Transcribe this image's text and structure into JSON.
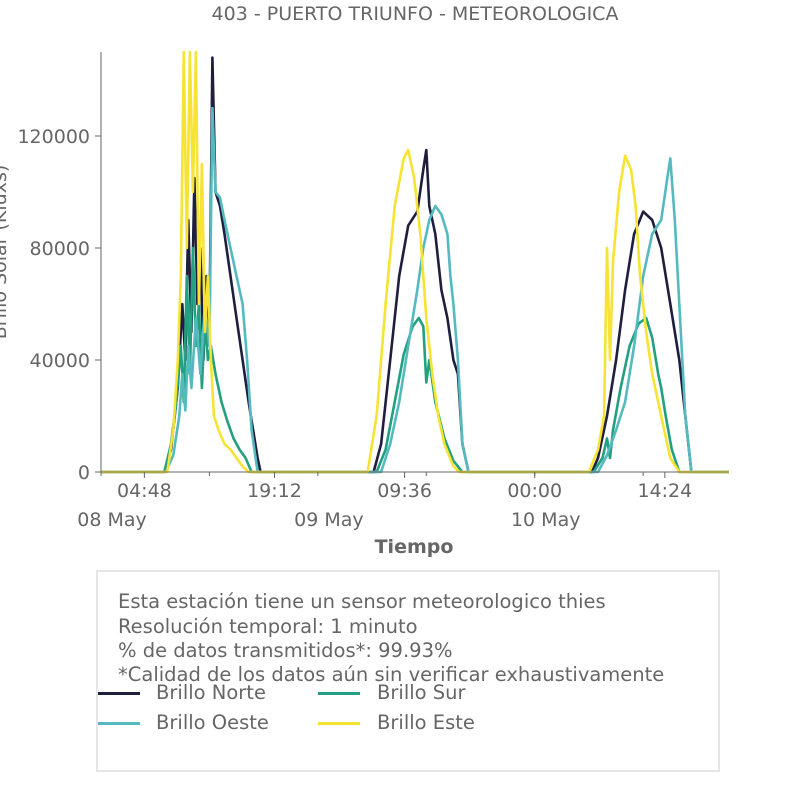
{
  "colors": {
    "norte": "#1f1e3f",
    "sur": "#22a07f",
    "oeste": "#55babf",
    "este": "#f6e333",
    "axis": "#666666",
    "border": "#e6e6e6"
  },
  "chart_data": {
    "type": "line",
    "title": "403 - PUERTO TRIUNFO - METEOROLOGICA",
    "xlabel": "Tiempo",
    "ylabel": "Brillo Solar (Kluxs)",
    "ylim": [
      0,
      150000
    ],
    "xlim": [
      "2024-05-08 00:00",
      "2024-05-10 21:30"
    ],
    "x_ticks": [
      {
        "t": "2024-05-08 04:48",
        "label": "04:48",
        "sub": "08 May"
      },
      {
        "t": "2024-05-08 19:12",
        "label": "19:12",
        "sub": ""
      },
      {
        "t": "2024-05-09 09:36",
        "label": "09:36",
        "sub": "09 May"
      },
      {
        "t": "2024-05-10 00:00",
        "label": "00:00",
        "sub": "10 May"
      },
      {
        "t": "2024-05-10 14:24",
        "label": "14:24",
        "sub": ""
      }
    ],
    "date_labels": [
      {
        "t": "2024-05-08 00:00",
        "label": "08 May"
      },
      {
        "t": "2024-05-09 00:00",
        "label": "09 May"
      },
      {
        "t": "2024-05-10 00:00",
        "label": "10 May"
      }
    ],
    "y_ticks": [
      0,
      40000,
      80000,
      120000
    ],
    "grid": false,
    "legend_position": "bottom",
    "series": [
      {
        "name": "Brillo Norte",
        "color_key": "norte",
        "points": [
          [
            "2024-05-08 00:00",
            0
          ],
          [
            "2024-05-08 07:00",
            0
          ],
          [
            "2024-05-08 07:45",
            8000
          ],
          [
            "2024-05-08 08:30",
            30000
          ],
          [
            "2024-05-08 09:00",
            60000
          ],
          [
            "2024-05-08 09:20",
            40000
          ],
          [
            "2024-05-08 09:40",
            90000
          ],
          [
            "2024-05-08 10:00",
            50000
          ],
          [
            "2024-05-08 10:20",
            105000
          ],
          [
            "2024-05-08 10:40",
            60000
          ],
          [
            "2024-05-08 11:00",
            80000
          ],
          [
            "2024-05-08 11:20",
            40000
          ],
          [
            "2024-05-08 11:40",
            70000
          ],
          [
            "2024-05-08 12:00",
            50000
          ],
          [
            "2024-05-08 12:20",
            148000
          ],
          [
            "2024-05-08 12:40",
            100000
          ],
          [
            "2024-05-08 13:10",
            95000
          ],
          [
            "2024-05-08 13:40",
            85000
          ],
          [
            "2024-05-08 14:20",
            70000
          ],
          [
            "2024-05-08 15:00",
            55000
          ],
          [
            "2024-05-08 15:40",
            40000
          ],
          [
            "2024-05-08 16:20",
            25000
          ],
          [
            "2024-05-08 16:50",
            15000
          ],
          [
            "2024-05-08 17:20",
            5000
          ],
          [
            "2024-05-08 17:40",
            0
          ],
          [
            "2024-05-09 06:10",
            0
          ],
          [
            "2024-05-09 07:00",
            10000
          ],
          [
            "2024-05-09 08:00",
            40000
          ],
          [
            "2024-05-09 09:00",
            70000
          ],
          [
            "2024-05-09 10:00",
            88000
          ],
          [
            "2024-05-09 11:00",
            93000
          ],
          [
            "2024-05-09 11:40",
            108000
          ],
          [
            "2024-05-09 12:00",
            115000
          ],
          [
            "2024-05-09 12:20",
            95000
          ],
          [
            "2024-05-09 13:00",
            85000
          ],
          [
            "2024-05-09 13:40",
            65000
          ],
          [
            "2024-05-09 14:20",
            55000
          ],
          [
            "2024-05-09 15:00",
            40000
          ],
          [
            "2024-05-09 15:30",
            35000
          ],
          [
            "2024-05-09 16:00",
            10000
          ],
          [
            "2024-05-09 16:40",
            0
          ],
          [
            "2024-05-10 06:20",
            0
          ],
          [
            "2024-05-10 07:00",
            5000
          ],
          [
            "2024-05-10 08:00",
            20000
          ],
          [
            "2024-05-10 09:00",
            40000
          ],
          [
            "2024-05-10 10:00",
            65000
          ],
          [
            "2024-05-10 11:00",
            85000
          ],
          [
            "2024-05-10 12:00",
            93000
          ],
          [
            "2024-05-10 13:00",
            90000
          ],
          [
            "2024-05-10 14:00",
            80000
          ],
          [
            "2024-05-10 15:00",
            60000
          ],
          [
            "2024-05-10 16:00",
            40000
          ],
          [
            "2024-05-10 16:40",
            20000
          ],
          [
            "2024-05-10 17:20",
            0
          ],
          [
            "2024-05-10 21:30",
            0
          ]
        ]
      },
      {
        "name": "Brillo Sur",
        "color_key": "sur",
        "points": [
          [
            "2024-05-08 00:00",
            0
          ],
          [
            "2024-05-08 07:00",
            0
          ],
          [
            "2024-05-08 07:45",
            10000
          ],
          [
            "2024-05-08 08:20",
            25000
          ],
          [
            "2024-05-08 08:50",
            45000
          ],
          [
            "2024-05-08 09:10",
            25000
          ],
          [
            "2024-05-08 09:30",
            70000
          ],
          [
            "2024-05-08 09:50",
            35000
          ],
          [
            "2024-05-08 10:10",
            80000
          ],
          [
            "2024-05-08 10:30",
            45000
          ],
          [
            "2024-05-08 10:50",
            60000
          ],
          [
            "2024-05-08 11:10",
            30000
          ],
          [
            "2024-05-08 11:30",
            55000
          ],
          [
            "2024-05-08 11:50",
            40000
          ],
          [
            "2024-05-08 12:10",
            45000
          ],
          [
            "2024-05-08 12:40",
            35000
          ],
          [
            "2024-05-08 13:20",
            25000
          ],
          [
            "2024-05-08 14:00",
            18000
          ],
          [
            "2024-05-08 14:40",
            12000
          ],
          [
            "2024-05-08 15:20",
            8000
          ],
          [
            "2024-05-08 16:00",
            5000
          ],
          [
            "2024-05-08 16:40",
            0
          ],
          [
            "2024-05-09 06:30",
            0
          ],
          [
            "2024-05-09 07:30",
            8000
          ],
          [
            "2024-05-09 08:30",
            25000
          ],
          [
            "2024-05-09 09:30",
            42000
          ],
          [
            "2024-05-09 10:30",
            52000
          ],
          [
            "2024-05-09 11:10",
            55000
          ],
          [
            "2024-05-09 11:40",
            52000
          ],
          [
            "2024-05-09 12:00",
            32000
          ],
          [
            "2024-05-09 12:20",
            40000
          ],
          [
            "2024-05-09 13:00",
            25000
          ],
          [
            "2024-05-09 14:00",
            12000
          ],
          [
            "2024-05-09 15:00",
            4000
          ],
          [
            "2024-05-09 16:00",
            0
          ],
          [
            "2024-05-10 06:30",
            0
          ],
          [
            "2024-05-10 07:30",
            5000
          ],
          [
            "2024-05-10 08:00",
            12000
          ],
          [
            "2024-05-10 08:20",
            5000
          ],
          [
            "2024-05-10 08:40",
            15000
          ],
          [
            "2024-05-10 09:30",
            30000
          ],
          [
            "2024-05-10 10:30",
            45000
          ],
          [
            "2024-05-10 11:30",
            53000
          ],
          [
            "2024-05-10 12:20",
            55000
          ],
          [
            "2024-05-10 13:00",
            48000
          ],
          [
            "2024-05-10 13:40",
            35000
          ],
          [
            "2024-05-10 14:00",
            30000
          ],
          [
            "2024-05-10 14:30",
            20000
          ],
          [
            "2024-05-10 15:10",
            8000
          ],
          [
            "2024-05-10 16:00",
            0
          ],
          [
            "2024-05-10 21:30",
            0
          ]
        ]
      },
      {
        "name": "Brillo Oeste",
        "color_key": "oeste",
        "points": [
          [
            "2024-05-08 00:00",
            0
          ],
          [
            "2024-05-08 07:10",
            0
          ],
          [
            "2024-05-08 08:00",
            6000
          ],
          [
            "2024-05-08 08:40",
            20000
          ],
          [
            "2024-05-08 09:00",
            35000
          ],
          [
            "2024-05-08 09:20",
            22000
          ],
          [
            "2024-05-08 09:40",
            45000
          ],
          [
            "2024-05-08 10:00",
            30000
          ],
          [
            "2024-05-08 10:30",
            55000
          ],
          [
            "2024-05-08 11:00",
            35000
          ],
          [
            "2024-05-08 11:30",
            60000
          ],
          [
            "2024-05-08 12:00",
            45000
          ],
          [
            "2024-05-08 12:20",
            130000
          ],
          [
            "2024-05-08 12:40",
            100000
          ],
          [
            "2024-05-08 13:10",
            98000
          ],
          [
            "2024-05-08 13:40",
            90000
          ],
          [
            "2024-05-08 14:20",
            80000
          ],
          [
            "2024-05-08 15:00",
            70000
          ],
          [
            "2024-05-08 15:40",
            60000
          ],
          [
            "2024-05-08 16:10",
            40000
          ],
          [
            "2024-05-08 16:40",
            15000
          ],
          [
            "2024-05-08 17:20",
            0
          ],
          [
            "2024-05-09 07:00",
            0
          ],
          [
            "2024-05-09 08:00",
            10000
          ],
          [
            "2024-05-09 09:00",
            25000
          ],
          [
            "2024-05-09 10:00",
            45000
          ],
          [
            "2024-05-09 11:00",
            65000
          ],
          [
            "2024-05-09 11:40",
            80000
          ],
          [
            "2024-05-09 12:20",
            90000
          ],
          [
            "2024-05-09 13:00",
            95000
          ],
          [
            "2024-05-09 13:40",
            92000
          ],
          [
            "2024-05-09 14:20",
            85000
          ],
          [
            "2024-05-09 14:40",
            70000
          ],
          [
            "2024-05-09 15:00",
            60000
          ],
          [
            "2024-05-09 15:30",
            40000
          ],
          [
            "2024-05-09 16:00",
            10000
          ],
          [
            "2024-05-09 16:40",
            0
          ],
          [
            "2024-05-10 07:00",
            0
          ],
          [
            "2024-05-10 08:00",
            6000
          ],
          [
            "2024-05-10 09:00",
            15000
          ],
          [
            "2024-05-10 10:00",
            25000
          ],
          [
            "2024-05-10 11:00",
            45000
          ],
          [
            "2024-05-10 12:00",
            70000
          ],
          [
            "2024-05-10 13:00",
            85000
          ],
          [
            "2024-05-10 14:00",
            90000
          ],
          [
            "2024-05-10 14:40",
            105000
          ],
          [
            "2024-05-10 15:00",
            112000
          ],
          [
            "2024-05-10 15:30",
            90000
          ],
          [
            "2024-05-10 16:00",
            60000
          ],
          [
            "2024-05-10 16:40",
            20000
          ],
          [
            "2024-05-10 17:20",
            0
          ],
          [
            "2024-05-10 21:30",
            0
          ]
        ]
      },
      {
        "name": "Brillo Este",
        "color_key": "este",
        "points": [
          [
            "2024-05-08 00:00",
            0
          ],
          [
            "2024-05-08 07:20",
            0
          ],
          [
            "2024-05-08 08:00",
            15000
          ],
          [
            "2024-05-08 08:30",
            40000
          ],
          [
            "2024-05-08 08:50",
            70000
          ],
          [
            "2024-05-08 09:10",
            150000
          ],
          [
            "2024-05-08 09:30",
            80000
          ],
          [
            "2024-05-08 09:50",
            150000
          ],
          [
            "2024-05-08 10:10",
            100000
          ],
          [
            "2024-05-08 10:30",
            150000
          ],
          [
            "2024-05-08 10:50",
            60000
          ],
          [
            "2024-05-08 11:10",
            110000
          ],
          [
            "2024-05-08 11:30",
            50000
          ],
          [
            "2024-05-08 11:50",
            70000
          ],
          [
            "2024-05-08 12:10",
            40000
          ],
          [
            "2024-05-08 12:30",
            20000
          ],
          [
            "2024-05-08 13:00",
            15000
          ],
          [
            "2024-05-08 13:40",
            10000
          ],
          [
            "2024-05-08 14:20",
            8000
          ],
          [
            "2024-05-08 15:00",
            5000
          ],
          [
            "2024-05-08 15:40",
            2000
          ],
          [
            "2024-05-08 16:20",
            0
          ],
          [
            "2024-05-09 05:30",
            0
          ],
          [
            "2024-05-09 06:30",
            20000
          ],
          [
            "2024-05-09 07:30",
            60000
          ],
          [
            "2024-05-09 08:30",
            95000
          ],
          [
            "2024-05-09 09:30",
            112000
          ],
          [
            "2024-05-09 10:00",
            115000
          ],
          [
            "2024-05-09 10:40",
            105000
          ],
          [
            "2024-05-09 11:20",
            85000
          ],
          [
            "2024-05-09 12:00",
            55000
          ],
          [
            "2024-05-09 12:40",
            35000
          ],
          [
            "2024-05-09 13:20",
            20000
          ],
          [
            "2024-05-09 14:00",
            10000
          ],
          [
            "2024-05-09 15:00",
            2000
          ],
          [
            "2024-05-09 15:40",
            0
          ],
          [
            "2024-05-10 06:00",
            0
          ],
          [
            "2024-05-10 07:00",
            8000
          ],
          [
            "2024-05-10 07:40",
            20000
          ],
          [
            "2024-05-10 08:00",
            80000
          ],
          [
            "2024-05-10 08:20",
            40000
          ],
          [
            "2024-05-10 08:40",
            75000
          ],
          [
            "2024-05-10 09:20",
            100000
          ],
          [
            "2024-05-10 10:00",
            113000
          ],
          [
            "2024-05-10 10:40",
            108000
          ],
          [
            "2024-05-10 11:10",
            95000
          ],
          [
            "2024-05-10 11:40",
            70000
          ],
          [
            "2024-05-10 12:20",
            50000
          ],
          [
            "2024-05-10 13:00",
            35000
          ],
          [
            "2024-05-10 13:40",
            25000
          ],
          [
            "2024-05-10 14:20",
            15000
          ],
          [
            "2024-05-10 15:00",
            5000
          ],
          [
            "2024-05-10 16:00",
            0
          ],
          [
            "2024-05-10 21:30",
            0
          ]
        ]
      }
    ]
  },
  "info": {
    "line1": "Esta estación tiene un sensor meteorologico thies",
    "line2": "Resolución temporal: 1 minuto",
    "line3": "% de datos transmitidos*: 99.93%",
    "line4": "*Calidad de los datos aún sin verificar exhaustivamente"
  },
  "legend": {
    "norte": "Brillo Norte",
    "sur": "Brillo Sur",
    "oeste": "Brillo Oeste",
    "este": "Brillo Este"
  }
}
